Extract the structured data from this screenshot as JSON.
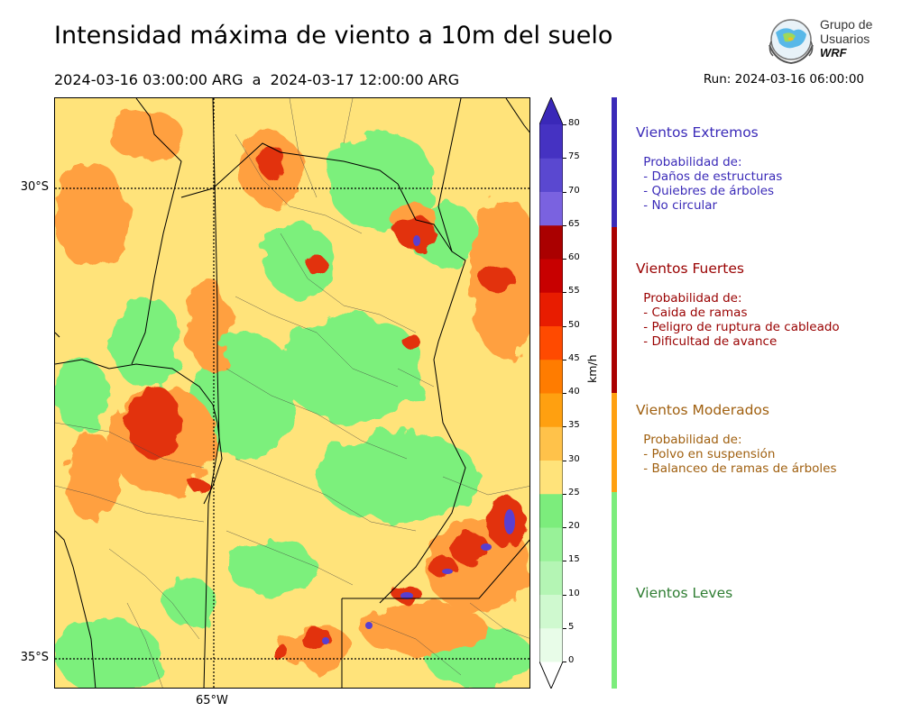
{
  "title": "Intensidad máxima de viento a 10m del suelo",
  "period": "2024-03-16 03:00:00 ARG  a  2024-03-17 12:00:00 ARG",
  "run": "Run: 2024-03-16 06:00:00",
  "logo": {
    "line1": "Grupo de",
    "line2": "Usuarios",
    "line3": "WRF"
  },
  "map": {
    "lat_labels": [
      "30°S",
      "35°S"
    ],
    "lon_labels": [
      "65°W"
    ],
    "colors": {
      "light_green": "#7cf07c",
      "yellow": "#ffe37a",
      "orange": "#ffa040",
      "red": "#e23010",
      "purple": "#5a3fd0"
    }
  },
  "colorbar": {
    "ticks": [
      "80",
      "75",
      "70",
      "65",
      "60",
      "55",
      "50",
      "45",
      "40",
      "35",
      "30",
      "25",
      "20",
      "15",
      "10",
      "5",
      "0"
    ],
    "colors_bottom_to_top": [
      "#e8fce8",
      "#cff9cf",
      "#b4f5b4",
      "#98f298",
      "#7ced7c",
      "#ffe37a",
      "#ffc24a",
      "#ffa010",
      "#ff7c00",
      "#ff4a00",
      "#e81c00",
      "#c80000",
      "#aa0000",
      "#7a62e0",
      "#5a48d0",
      "#4532c2",
      "#3a28b8"
    ],
    "units": "km/h"
  },
  "categories": [
    {
      "title": "Vientos Extremos",
      "color": "#3a2ab8",
      "text_color": "#3a2ab8",
      "desc": [
        " Probabilidad de:",
        " - Daños de estructuras",
        " - Quiebres de árboles",
        " - No circular"
      ]
    },
    {
      "title": "Vientos Fuertes",
      "color": "#aa0000",
      "text_color": "#990000",
      "desc": [
        " Probabilidad de:",
        " - Caida de ramas",
        " - Peligro de ruptura de cableado",
        " - Dificultad de avance"
      ]
    },
    {
      "title": "Vientos Moderados",
      "color": "#ffa010",
      "text_color": "#a06010",
      "desc": [
        " Probabilidad de:",
        " - Polvo en suspensión",
        " - Balanceo de ramas de árboles"
      ]
    },
    {
      "title": "Vientos Leves",
      "color": "#7ced7c",
      "text_color": "#2e7d32",
      "desc": []
    }
  ]
}
